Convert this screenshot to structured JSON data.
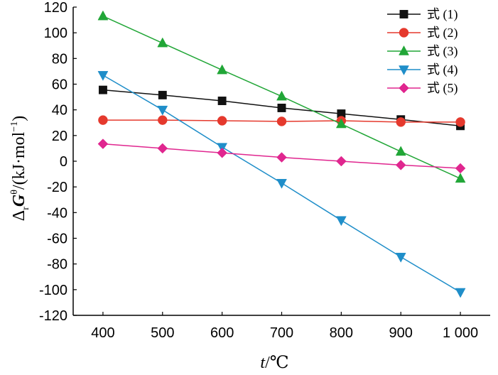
{
  "chart_data": {
    "type": "line",
    "title": "",
    "xlabel": "t/℃",
    "xlabel_italic": "t",
    "xlabel_unit": "/℃",
    "ylabel": "ΔrGθ/(kJ·mol⁻¹)",
    "ylabel_parts": {
      "delta": "Δ",
      "sub": "r",
      "sym": "G",
      "sup": "θ",
      "unit": "/(kJ·mol",
      "unit_sup": "−1",
      "close": ")"
    },
    "x": [
      400,
      500,
      600,
      700,
      800,
      900,
      1000
    ],
    "x_tick_labels": [
      "400",
      "500",
      "600",
      "700",
      "800",
      "900",
      "1 000"
    ],
    "xlim": [
      350,
      1050
    ],
    "ylim": [
      -120,
      120
    ],
    "y_ticks": [
      120,
      100,
      80,
      60,
      40,
      20,
      0,
      -20,
      -40,
      -60,
      -80,
      -100,
      -120
    ],
    "grid": false,
    "legend_position": "top-right",
    "series": [
      {
        "name": "式 (1)",
        "color": "#111111",
        "marker": "square",
        "values": [
          55.5,
          51.5,
          47,
          41.5,
          37,
          32.5,
          27.5
        ]
      },
      {
        "name": "式 (2)",
        "color": "#e5392d",
        "marker": "circle",
        "values": [
          32,
          32,
          31.5,
          31,
          31.5,
          30.5,
          30.5
        ]
      },
      {
        "name": "式 (3)",
        "color": "#21a637",
        "marker": "triangle-up",
        "values": [
          113,
          92,
          71,
          50.5,
          29,
          7.5,
          -13.5
        ]
      },
      {
        "name": "式 (4)",
        "color": "#1f8ec9",
        "marker": "triangle-down",
        "values": [
          67,
          40,
          11,
          -17,
          -46,
          -74.5,
          -102
        ]
      },
      {
        "name": "式 (5)",
        "color": "#e0268f",
        "marker": "diamond",
        "values": [
          13.5,
          10,
          6.5,
          3,
          0,
          -3,
          -5.5
        ]
      }
    ]
  }
}
